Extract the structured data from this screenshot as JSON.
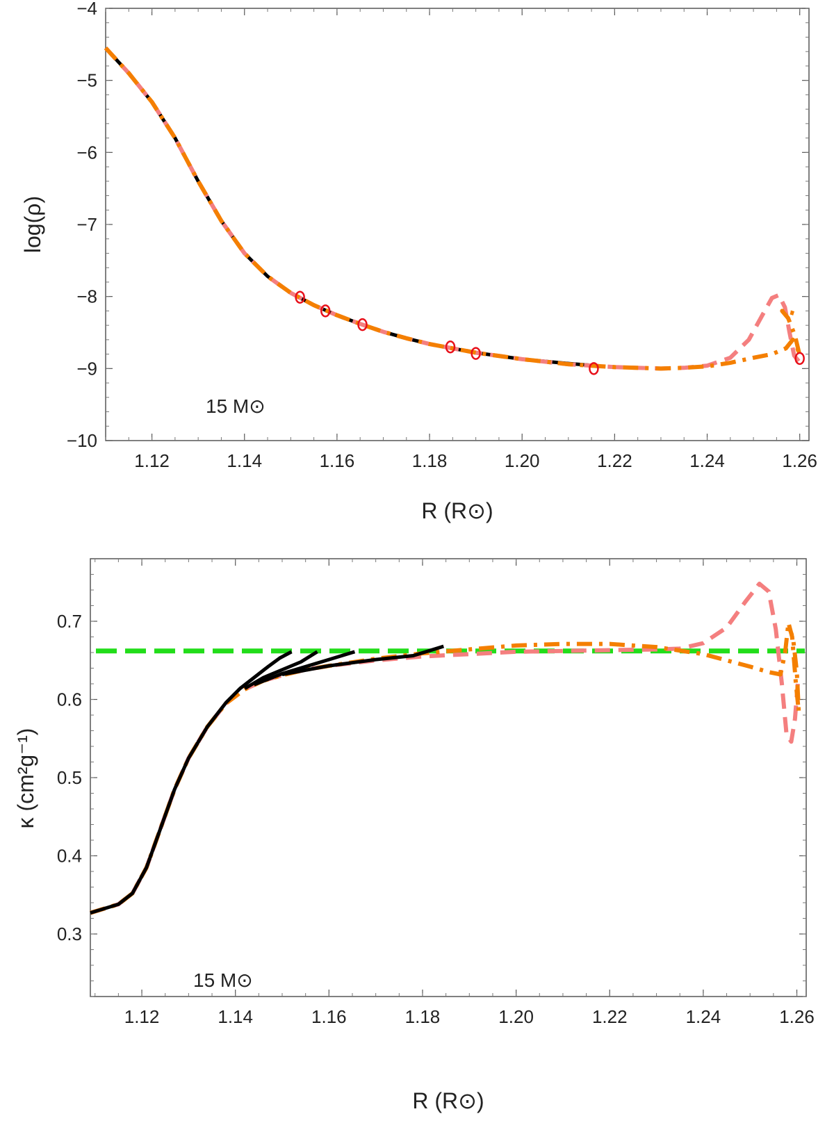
{
  "chart_data": [
    {
      "type": "line",
      "ylabel": "log(ρ)",
      "xlabel": "R (R⊙)",
      "annotation": "15 M⊙",
      "xlim": [
        1.11,
        1.262
      ],
      "ylim": [
        -10,
        -4
      ],
      "xticks": [
        1.12,
        1.14,
        1.16,
        1.18,
        1.2,
        1.22,
        1.24,
        1.26
      ],
      "xtick_labels": [
        "1.12",
        "1.14",
        "1.16",
        "1.18",
        "1.20",
        "1.22",
        "1.24",
        "1.26"
      ],
      "yticks": [
        -10,
        -9,
        -8,
        -7,
        -6,
        -5,
        -4
      ],
      "ytick_labels": [
        "−10",
        "−9",
        "−8",
        "−7",
        "−6",
        "−5",
        "−4"
      ],
      "series": [
        {
          "name": "black solid",
          "color": "#000000",
          "style": "solid",
          "points": [
            [
              1.11,
              -4.55
            ],
            [
              1.115,
              -4.9
            ],
            [
              1.12,
              -5.3
            ],
            [
              1.125,
              -5.8
            ],
            [
              1.13,
              -6.4
            ],
            [
              1.135,
              -6.95
            ],
            [
              1.14,
              -7.4
            ],
            [
              1.145,
              -7.72
            ],
            [
              1.15,
              -7.95
            ],
            [
              1.155,
              -8.12
            ],
            [
              1.16,
              -8.26
            ],
            [
              1.165,
              -8.38
            ],
            [
              1.17,
              -8.49
            ],
            [
              1.175,
              -8.58
            ],
            [
              1.18,
              -8.66
            ],
            [
              1.185,
              -8.72
            ],
            [
              1.19,
              -8.78
            ],
            [
              1.2,
              -8.87
            ],
            [
              1.21,
              -8.93
            ],
            [
              1.216,
              -8.96
            ]
          ]
        },
        {
          "name": "pink dashed",
          "color": "#F47F7F",
          "style": "dashed",
          "points": [
            [
              1.11,
              -4.55
            ],
            [
              1.115,
              -4.9
            ],
            [
              1.12,
              -5.3
            ],
            [
              1.125,
              -5.8
            ],
            [
              1.13,
              -6.4
            ],
            [
              1.135,
              -6.95
            ],
            [
              1.14,
              -7.4
            ],
            [
              1.145,
              -7.72
            ],
            [
              1.15,
              -7.95
            ],
            [
              1.155,
              -8.12
            ],
            [
              1.16,
              -8.26
            ],
            [
              1.165,
              -8.38
            ],
            [
              1.17,
              -8.49
            ],
            [
              1.175,
              -8.58
            ],
            [
              1.18,
              -8.66
            ],
            [
              1.185,
              -8.72
            ],
            [
              1.19,
              -8.78
            ],
            [
              1.2,
              -8.87
            ],
            [
              1.21,
              -8.94
            ],
            [
              1.22,
              -8.98
            ],
            [
              1.23,
              -9.0
            ],
            [
              1.235,
              -8.99
            ],
            [
              1.24,
              -8.96
            ],
            [
              1.245,
              -8.85
            ],
            [
              1.249,
              -8.6
            ],
            [
              1.252,
              -8.25
            ],
            [
              1.254,
              -8.02
            ],
            [
              1.2555,
              -7.98
            ],
            [
              1.2568,
              -8.15
            ],
            [
              1.2578,
              -8.5
            ],
            [
              1.2588,
              -8.82
            ],
            [
              1.2598,
              -8.9
            ]
          ]
        },
        {
          "name": "orange dot-dashed",
          "color": "#F47F00",
          "style": "dashdot",
          "points": [
            [
              1.11,
              -4.55
            ],
            [
              1.115,
              -4.9
            ],
            [
              1.12,
              -5.3
            ],
            [
              1.125,
              -5.8
            ],
            [
              1.13,
              -6.4
            ],
            [
              1.135,
              -6.95
            ],
            [
              1.14,
              -7.4
            ],
            [
              1.145,
              -7.72
            ],
            [
              1.15,
              -7.95
            ],
            [
              1.155,
              -8.12
            ],
            [
              1.16,
              -8.26
            ],
            [
              1.165,
              -8.38
            ],
            [
              1.17,
              -8.49
            ],
            [
              1.175,
              -8.58
            ],
            [
              1.18,
              -8.66
            ],
            [
              1.185,
              -8.72
            ],
            [
              1.19,
              -8.78
            ],
            [
              1.2,
              -8.87
            ],
            [
              1.21,
              -8.94
            ],
            [
              1.22,
              -8.98
            ],
            [
              1.23,
              -9.0
            ],
            [
              1.235,
              -8.99
            ],
            [
              1.24,
              -8.97
            ],
            [
              1.245,
              -8.92
            ],
            [
              1.25,
              -8.85
            ],
            [
              1.254,
              -8.8
            ],
            [
              1.257,
              -8.72
            ],
            [
              1.2585,
              -8.6
            ],
            [
              1.2595,
              -8.72
            ],
            [
              1.26,
              -8.82
            ],
            [
              1.259,
              -8.55
            ],
            [
              1.2575,
              -8.3
            ],
            [
              1.2562,
              -8.2
            ],
            [
              1.258,
              -8.22
            ],
            [
              1.2595,
              -8.25
            ]
          ]
        }
      ],
      "markers": {
        "name": "red circles",
        "color": "#E8101A",
        "points": [
          [
            1.152,
            -8.01
          ],
          [
            1.1575,
            -8.2
          ],
          [
            1.1655,
            -8.39
          ],
          [
            1.1845,
            -8.7
          ],
          [
            1.19,
            -8.79
          ],
          [
            1.2155,
            -9.0
          ],
          [
            1.26,
            -8.86
          ]
        ]
      }
    },
    {
      "type": "line",
      "ylabel": "κ (cm²g⁻¹)",
      "xlabel": "R (R⊙)",
      "annotation": "15 M⊙",
      "xlim": [
        1.109,
        1.262
      ],
      "ylim": [
        0.22,
        0.78
      ],
      "xticks": [
        1.12,
        1.14,
        1.16,
        1.18,
        1.2,
        1.22,
        1.24,
        1.26
      ],
      "xtick_labels": [
        "1.12",
        "1.14",
        "1.16",
        "1.18",
        "1.20",
        "1.22",
        "1.24",
        "1.26"
      ],
      "yticks": [
        0.3,
        0.4,
        0.5,
        0.6,
        0.7
      ],
      "ytick_labels": [
        "0.3",
        "0.4",
        "0.5",
        "0.6",
        "0.7"
      ],
      "reference_line": {
        "name": "green dashed",
        "color": "#22DD1A",
        "y": 0.662
      },
      "series": [
        {
          "name": "pink dashed",
          "color": "#F47F7F",
          "style": "dashed",
          "points": [
            [
              1.109,
              0.327
            ],
            [
              1.115,
              0.338
            ],
            [
              1.118,
              0.352
            ],
            [
              1.121,
              0.385
            ],
            [
              1.124,
              0.435
            ],
            [
              1.127,
              0.485
            ],
            [
              1.13,
              0.525
            ],
            [
              1.134,
              0.565
            ],
            [
              1.138,
              0.595
            ],
            [
              1.142,
              0.613
            ],
            [
              1.146,
              0.624
            ],
            [
              1.15,
              0.631
            ],
            [
              1.155,
              0.638
            ],
            [
              1.16,
              0.643
            ],
            [
              1.17,
              0.65
            ],
            [
              1.18,
              0.655
            ],
            [
              1.19,
              0.658
            ],
            [
              1.2,
              0.661
            ],
            [
              1.21,
              0.662
            ],
            [
              1.22,
              0.663
            ],
            [
              1.23,
              0.664
            ],
            [
              1.235,
              0.665
            ],
            [
              1.24,
              0.672
            ],
            [
              1.245,
              0.692
            ],
            [
              1.249,
              0.725
            ],
            [
              1.252,
              0.748
            ],
            [
              1.254,
              0.738
            ],
            [
              1.2555,
              0.69
            ],
            [
              1.2568,
              0.62
            ],
            [
              1.2578,
              0.555
            ],
            [
              1.2588,
              0.546
            ],
            [
              1.2596,
              0.575
            ],
            [
              1.2602,
              0.62
            ]
          ]
        },
        {
          "name": "orange dot-dashed",
          "color": "#F47F00",
          "style": "dashdot",
          "points": [
            [
              1.109,
              0.327
            ],
            [
              1.115,
              0.338
            ],
            [
              1.118,
              0.352
            ],
            [
              1.121,
              0.385
            ],
            [
              1.124,
              0.435
            ],
            [
              1.127,
              0.485
            ],
            [
              1.13,
              0.525
            ],
            [
              1.134,
              0.565
            ],
            [
              1.138,
              0.595
            ],
            [
              1.142,
              0.613
            ],
            [
              1.146,
              0.624
            ],
            [
              1.15,
              0.631
            ],
            [
              1.155,
              0.638
            ],
            [
              1.16,
              0.643
            ],
            [
              1.17,
              0.652
            ],
            [
              1.18,
              0.659
            ],
            [
              1.19,
              0.664
            ],
            [
              1.2,
              0.669
            ],
            [
              1.21,
              0.671
            ],
            [
              1.22,
              0.671
            ],
            [
              1.23,
              0.667
            ],
            [
              1.24,
              0.658
            ],
            [
              1.245,
              0.65
            ],
            [
              1.25,
              0.642
            ],
            [
              1.254,
              0.635
            ],
            [
              1.2565,
              0.632
            ],
            [
              1.2575,
              0.66
            ],
            [
              1.2582,
              0.698
            ],
            [
              1.259,
              0.68
            ],
            [
              1.2598,
              0.62
            ],
            [
              1.2604,
              0.585
            ],
            [
              1.26,
              0.635
            ],
            [
              1.2592,
              0.678
            ],
            [
              1.2585,
              0.69
            ]
          ]
        },
        {
          "name": "black curve 1",
          "color": "#000000",
          "style": "solid",
          "points": [
            [
              1.109,
              0.327
            ],
            [
              1.115,
              0.338
            ],
            [
              1.118,
              0.352
            ],
            [
              1.121,
              0.385
            ],
            [
              1.124,
              0.435
            ],
            [
              1.127,
              0.485
            ],
            [
              1.13,
              0.525
            ],
            [
              1.134,
              0.565
            ],
            [
              1.138,
              0.596
            ],
            [
              1.141,
              0.614
            ],
            [
              1.144,
              0.628
            ],
            [
              1.147,
              0.642
            ],
            [
              1.1495,
              0.653
            ],
            [
              1.152,
              0.661
            ]
          ]
        },
        {
          "name": "black curve 2",
          "color": "#000000",
          "style": "solid",
          "points": [
            [
              1.142,
              0.614
            ],
            [
              1.146,
              0.628
            ],
            [
              1.15,
              0.638
            ],
            [
              1.154,
              0.648
            ],
            [
              1.1575,
              0.661
            ]
          ]
        },
        {
          "name": "black curve 3",
          "color": "#000000",
          "style": "solid",
          "points": [
            [
              1.144,
              0.619
            ],
            [
              1.15,
              0.633
            ],
            [
              1.155,
              0.642
            ],
            [
              1.16,
              0.651
            ],
            [
              1.1655,
              0.661
            ]
          ]
        },
        {
          "name": "black curve 4",
          "color": "#000000",
          "style": "solid",
          "points": [
            [
              1.15,
              0.632
            ],
            [
              1.16,
              0.643
            ],
            [
              1.17,
              0.651
            ],
            [
              1.178,
              0.656
            ],
            [
              1.1845,
              0.668
            ]
          ]
        }
      ]
    }
  ]
}
